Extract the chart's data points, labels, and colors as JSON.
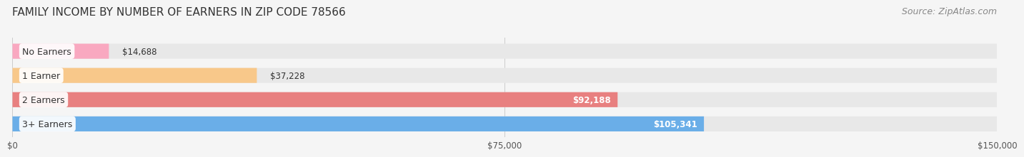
{
  "title": "FAMILY INCOME BY NUMBER OF EARNERS IN ZIP CODE 78566",
  "source": "Source: ZipAtlas.com",
  "categories": [
    "No Earners",
    "1 Earner",
    "2 Earners",
    "3+ Earners"
  ],
  "values": [
    14688,
    37228,
    92188,
    105341
  ],
  "bar_colors": [
    "#f9a8c0",
    "#f8c88a",
    "#e88080",
    "#6aaee8"
  ],
  "label_colors": [
    "#555555",
    "#555555",
    "#ffffff",
    "#ffffff"
  ],
  "bar_bg_color": "#eeeeee",
  "xlim": [
    0,
    150000
  ],
  "xticks": [
    0,
    75000,
    150000
  ],
  "xtick_labels": [
    "$0",
    "$75,000",
    "$150,000"
  ],
  "background_color": "#f5f5f5",
  "title_fontsize": 11,
  "source_fontsize": 9,
  "bar_height": 0.62,
  "value_labels": [
    "$14,688",
    "$37,228",
    "$92,188",
    "$105,341"
  ]
}
